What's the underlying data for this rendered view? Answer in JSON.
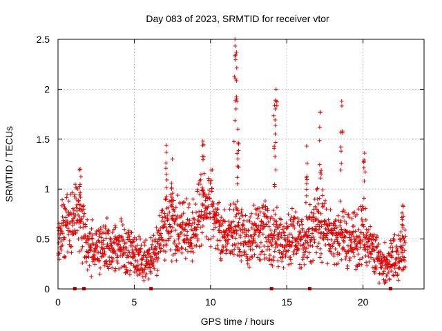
{
  "chart_data": {
    "type": "scatter",
    "title": "Day 083 of 2023, SRMTID for receiver vtor",
    "xlabel": "GPS time / hours",
    "ylabel": "SRMTID / TECUs",
    "xlim": [
      0,
      24
    ],
    "ylim": [
      0,
      2.5
    ],
    "x_ticks": [
      0,
      5,
      10,
      15,
      20
    ],
    "x_tick_labels": [
      "0",
      "5",
      "10",
      "15",
      "20"
    ],
    "y_ticks": [
      0,
      0.5,
      1,
      1.5,
      2,
      2.5
    ],
    "y_tick_labels": [
      "0",
      "0.5",
      "1",
      "1.5",
      "2",
      "2.5"
    ],
    "grid": true,
    "marker": "+",
    "color": "#e00000",
    "series": [
      {
        "name": "SRMTID",
        "profile": [
          [
            0.0,
            0.45
          ],
          [
            0.3,
            0.6
          ],
          [
            0.6,
            0.65
          ],
          [
            1.0,
            0.7
          ],
          [
            1.3,
            0.72
          ],
          [
            1.6,
            0.6
          ],
          [
            2.0,
            0.4
          ],
          [
            2.5,
            0.42
          ],
          [
            3.0,
            0.45
          ],
          [
            3.5,
            0.4
          ],
          [
            4.0,
            0.45
          ],
          [
            4.5,
            0.38
          ],
          [
            5.0,
            0.33
          ],
          [
            5.5,
            0.28
          ],
          [
            6.0,
            0.3
          ],
          [
            6.5,
            0.4
          ],
          [
            7.0,
            0.55
          ],
          [
            7.5,
            0.65
          ],
          [
            8.0,
            0.6
          ],
          [
            8.5,
            0.55
          ],
          [
            9.0,
            0.6
          ],
          [
            9.5,
            0.8
          ],
          [
            10.0,
            0.85
          ],
          [
            10.5,
            0.6
          ],
          [
            11.0,
            0.5
          ],
          [
            11.5,
            0.6
          ],
          [
            12.0,
            0.55
          ],
          [
            12.5,
            0.5
          ],
          [
            13.0,
            0.55
          ],
          [
            13.5,
            0.6
          ],
          [
            14.0,
            0.55
          ],
          [
            14.5,
            0.5
          ],
          [
            15.0,
            0.45
          ],
          [
            15.5,
            0.5
          ],
          [
            16.0,
            0.45
          ],
          [
            16.5,
            0.6
          ],
          [
            17.0,
            0.7
          ],
          [
            17.5,
            0.6
          ],
          [
            18.0,
            0.5
          ],
          [
            18.5,
            0.55
          ],
          [
            19.0,
            0.5
          ],
          [
            19.5,
            0.5
          ],
          [
            20.0,
            0.55
          ],
          [
            20.5,
            0.4
          ],
          [
            21.0,
            0.3
          ],
          [
            21.5,
            0.25
          ],
          [
            22.0,
            0.3
          ],
          [
            22.5,
            0.35
          ],
          [
            22.8,
            0.4
          ]
        ],
        "peaks": [
          {
            "x": 1.45,
            "y": 1.2
          },
          {
            "x": 7.1,
            "y": 1.44
          },
          {
            "x": 7.5,
            "y": 1.3
          },
          {
            "x": 9.5,
            "y": 1.48
          },
          {
            "x": 11.6,
            "y": 2.5
          },
          {
            "x": 11.7,
            "y": 2.37
          },
          {
            "x": 11.8,
            "y": 1.6
          },
          {
            "x": 14.3,
            "y": 2.0
          },
          {
            "x": 14.2,
            "y": 1.84
          },
          {
            "x": 16.3,
            "y": 1.43
          },
          {
            "x": 17.2,
            "y": 1.77
          },
          {
            "x": 18.6,
            "y": 1.88
          },
          {
            "x": 20.1,
            "y": 1.36
          },
          {
            "x": 22.6,
            "y": 0.84
          }
        ]
      }
    ],
    "baseline_markers": [
      1.1,
      1.7,
      6.1,
      14.0,
      16.5,
      21.8
    ]
  }
}
